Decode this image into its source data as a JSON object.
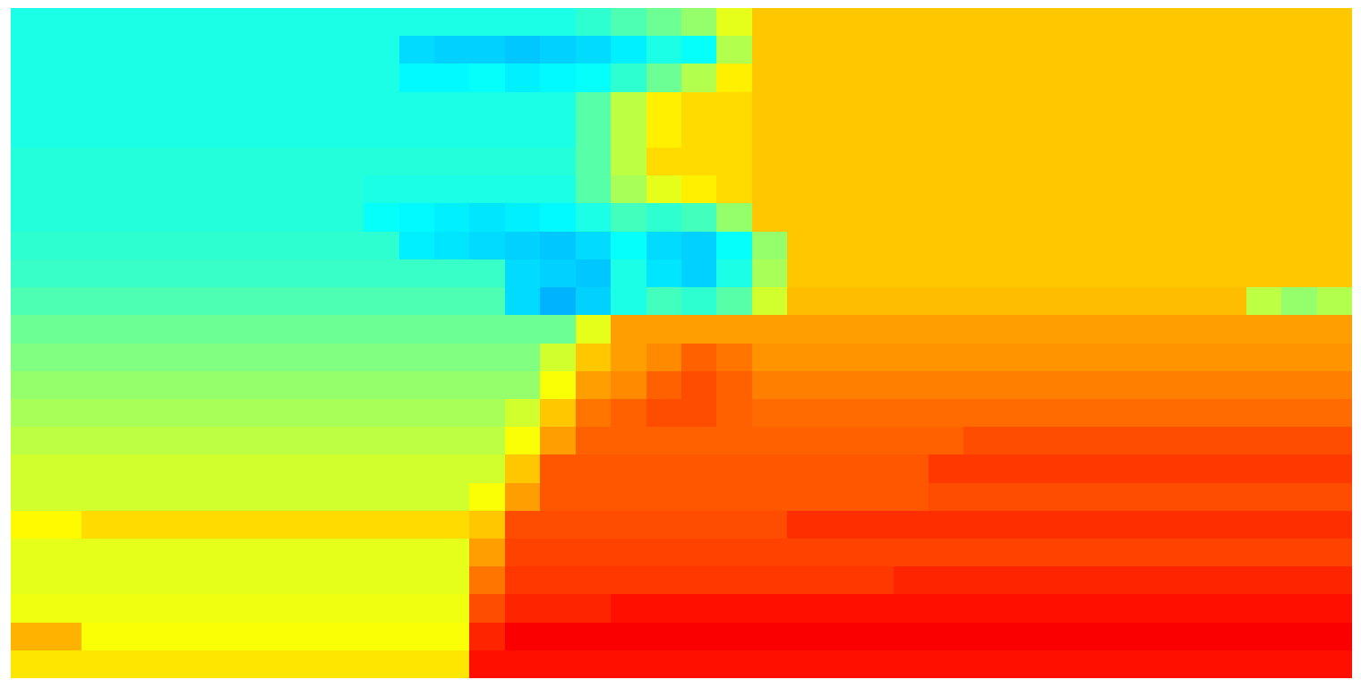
{
  "chart_data": {
    "type": "heatmap",
    "color": "jet",
    "tick_labels": false,
    "zlim": [
      0,
      100
    ],
    "z": [
      [
        40,
        40,
        40,
        40,
        40,
        40,
        40,
        40,
        40,
        40,
        40,
        40,
        40,
        40,
        40,
        40,
        42,
        45,
        48,
        52,
        60,
        68,
        68,
        68,
        68,
        68,
        68,
        68,
        68,
        68,
        68,
        68,
        68,
        68,
        68,
        68,
        68,
        68
      ],
      [
        40,
        40,
        40,
        40,
        40,
        40,
        40,
        40,
        40,
        40,
        40,
        34,
        33,
        33,
        32,
        33,
        34,
        36,
        40,
        38,
        55,
        68,
        68,
        68,
        68,
        68,
        68,
        68,
        68,
        68,
        68,
        68,
        68,
        68,
        68,
        68,
        68,
        68
      ],
      [
        40,
        40,
        40,
        40,
        40,
        40,
        40,
        40,
        40,
        40,
        40,
        37,
        37,
        38,
        36,
        37,
        38,
        42,
        48,
        55,
        64,
        68,
        68,
        68,
        68,
        68,
        68,
        68,
        68,
        68,
        68,
        68,
        68,
        68,
        68,
        68,
        68,
        68
      ],
      [
        40,
        40,
        40,
        40,
        40,
        40,
        40,
        40,
        40,
        40,
        40,
        40,
        40,
        40,
        40,
        40,
        46,
        56,
        64,
        66,
        66,
        68,
        68,
        68,
        68,
        68,
        68,
        68,
        68,
        68,
        68,
        68,
        68,
        68,
        68,
        68,
        68,
        68
      ],
      [
        40,
        40,
        40,
        40,
        40,
        40,
        40,
        40,
        40,
        40,
        40,
        40,
        40,
        40,
        40,
        40,
        46,
        56,
        64,
        66,
        66,
        68,
        68,
        68,
        68,
        68,
        68,
        68,
        68,
        68,
        68,
        68,
        68,
        68,
        68,
        68,
        68,
        68
      ],
      [
        41,
        41,
        41,
        41,
        41,
        41,
        41,
        41,
        41,
        41,
        41,
        41,
        41,
        41,
        41,
        41,
        46,
        56,
        66,
        66,
        66,
        68,
        68,
        68,
        68,
        68,
        68,
        68,
        68,
        68,
        68,
        68,
        68,
        68,
        68,
        68,
        68,
        68
      ],
      [
        41,
        41,
        41,
        41,
        41,
        41,
        41,
        41,
        41,
        41,
        40,
        40,
        40,
        40,
        40,
        40,
        46,
        54,
        60,
        64,
        66,
        68,
        68,
        68,
        68,
        68,
        68,
        68,
        68,
        68,
        68,
        68,
        68,
        68,
        68,
        68,
        68,
        68
      ],
      [
        41,
        41,
        41,
        41,
        41,
        41,
        41,
        41,
        41,
        41,
        38,
        37,
        36,
        35,
        36,
        37,
        40,
        44,
        42,
        44,
        52,
        68,
        68,
        68,
        68,
        68,
        68,
        68,
        68,
        68,
        68,
        68,
        68,
        68,
        68,
        68,
        68,
        68
      ],
      [
        42,
        42,
        42,
        42,
        42,
        42,
        42,
        42,
        42,
        42,
        42,
        36,
        35,
        34,
        33,
        32,
        34,
        38,
        34,
        33,
        38,
        52,
        68,
        68,
        68,
        68,
        68,
        68,
        68,
        68,
        68,
        68,
        68,
        68,
        68,
        68,
        68,
        68
      ],
      [
        43,
        43,
        43,
        43,
        43,
        43,
        43,
        43,
        43,
        43,
        43,
        43,
        43,
        43,
        34,
        33,
        32,
        40,
        35,
        33,
        40,
        54,
        68,
        68,
        68,
        68,
        68,
        68,
        68,
        68,
        68,
        68,
        68,
        68,
        68,
        68,
        68,
        68
      ],
      [
        45,
        45,
        45,
        45,
        45,
        45,
        45,
        45,
        45,
        45,
        45,
        45,
        45,
        45,
        34,
        30,
        33,
        40,
        44,
        42,
        46,
        58,
        69,
        69,
        69,
        69,
        69,
        69,
        69,
        69,
        69,
        69,
        69,
        69,
        69,
        56,
        52,
        55
      ],
      [
        48,
        48,
        48,
        48,
        48,
        48,
        48,
        48,
        48,
        48,
        48,
        48,
        48,
        48,
        48,
        48,
        60,
        72,
        72,
        72,
        72,
        72,
        72,
        72,
        72,
        72,
        72,
        72,
        72,
        72,
        72,
        72,
        72,
        72,
        72,
        72,
        72,
        72
      ],
      [
        50,
        50,
        50,
        50,
        50,
        50,
        50,
        50,
        50,
        50,
        50,
        50,
        50,
        50,
        50,
        58,
        68,
        72,
        74,
        78,
        76,
        73,
        73,
        73,
        73,
        73,
        73,
        73,
        73,
        73,
        73,
        73,
        73,
        73,
        73,
        73,
        73,
        73
      ],
      [
        52,
        52,
        52,
        52,
        52,
        52,
        52,
        52,
        52,
        52,
        52,
        52,
        52,
        52,
        52,
        62,
        72,
        74,
        78,
        80,
        78,
        75,
        75,
        75,
        75,
        75,
        75,
        75,
        75,
        75,
        75,
        75,
        75,
        75,
        75,
        75,
        75,
        75
      ],
      [
        54,
        54,
        54,
        54,
        54,
        54,
        54,
        54,
        54,
        54,
        54,
        54,
        54,
        54,
        58,
        68,
        76,
        78,
        80,
        80,
        78,
        77,
        77,
        77,
        77,
        77,
        77,
        77,
        77,
        77,
        77,
        77,
        77,
        77,
        77,
        77,
        77,
        77
      ],
      [
        56,
        56,
        56,
        56,
        56,
        56,
        56,
        56,
        56,
        56,
        56,
        56,
        56,
        56,
        62,
        72,
        78,
        78,
        78,
        78,
        78,
        78,
        78,
        78,
        78,
        78,
        78,
        80,
        80,
        80,
        80,
        80,
        80,
        80,
        80,
        80,
        80,
        80
      ],
      [
        58,
        58,
        58,
        58,
        58,
        58,
        58,
        58,
        58,
        58,
        58,
        58,
        58,
        58,
        68,
        79,
        79,
        79,
        79,
        79,
        79,
        79,
        79,
        79,
        79,
        79,
        82,
        82,
        82,
        82,
        82,
        82,
        82,
        82,
        82,
        82,
        82,
        82
      ],
      [
        58,
        58,
        58,
        58,
        58,
        58,
        58,
        58,
        58,
        58,
        58,
        58,
        58,
        62,
        72,
        79,
        79,
        79,
        79,
        79,
        79,
        79,
        79,
        79,
        79,
        79,
        80,
        80,
        80,
        80,
        80,
        80,
        80,
        80,
        80,
        80,
        80,
        80
      ],
      [
        63,
        63,
        66,
        66,
        66,
        66,
        66,
        66,
        66,
        66,
        66,
        66,
        66,
        68,
        80,
        80,
        80,
        80,
        80,
        80,
        80,
        80,
        83,
        83,
        83,
        83,
        83,
        83,
        83,
        83,
        83,
        83,
        83,
        83,
        83,
        83,
        83,
        83
      ],
      [
        60,
        60,
        60,
        60,
        60,
        60,
        60,
        60,
        60,
        60,
        60,
        60,
        60,
        72,
        81,
        81,
        81,
        81,
        81,
        81,
        81,
        81,
        81,
        81,
        81,
        81,
        81,
        81,
        81,
        81,
        81,
        81,
        81,
        81,
        81,
        81,
        81,
        81
      ],
      [
        60,
        60,
        60,
        60,
        60,
        60,
        60,
        60,
        60,
        60,
        60,
        60,
        60,
        76,
        82,
        82,
        82,
        82,
        82,
        82,
        82,
        82,
        82,
        82,
        82,
        84,
        84,
        84,
        84,
        84,
        84,
        84,
        84,
        84,
        84,
        84,
        84,
        84
      ],
      [
        61,
        61,
        61,
        61,
        61,
        61,
        61,
        61,
        61,
        61,
        61,
        61,
        61,
        80,
        84,
        84,
        84,
        86,
        86,
        86,
        86,
        86,
        86,
        86,
        86,
        86,
        86,
        86,
        86,
        86,
        86,
        86,
        86,
        86,
        86,
        86,
        86,
        86
      ],
      [
        70,
        70,
        62,
        62,
        62,
        62,
        62,
        62,
        62,
        62,
        62,
        62,
        62,
        84,
        88,
        88,
        88,
        88,
        88,
        88,
        88,
        88,
        88,
        88,
        88,
        88,
        88,
        88,
        88,
        88,
        88,
        88,
        88,
        88,
        88,
        88,
        88,
        88
      ],
      [
        65,
        65,
        65,
        65,
        65,
        65,
        65,
        65,
        65,
        65,
        65,
        65,
        65,
        86,
        86,
        86,
        86,
        86,
        86,
        86,
        86,
        86,
        86,
        86,
        86,
        86,
        86,
        86,
        86,
        86,
        86,
        86,
        86,
        86,
        86,
        86,
        86,
        86
      ]
    ]
  }
}
